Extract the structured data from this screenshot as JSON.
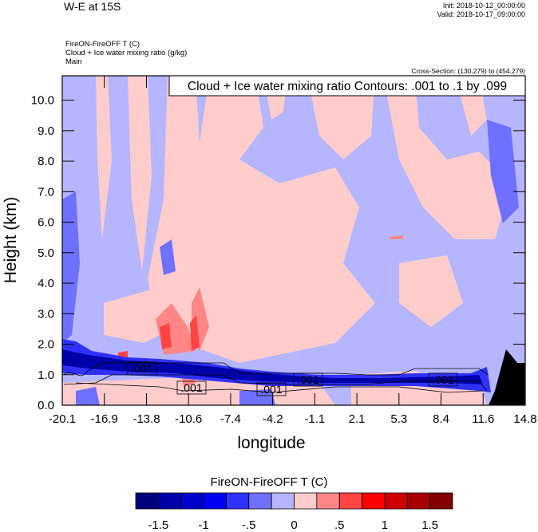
{
  "header": {
    "title": "W-E at 15S",
    "init": "Init: 2018-10-12_00:00:00",
    "valid": "Valid: 2018-10-17_09:00:00",
    "subtitle_lines": [
      "FireON-FireOFF T   (C)",
      "Cloud + Ice water mixing ratio   (g/kg)",
      "Main"
    ],
    "cross_section": "Cross-Section: (130,279) to (454,279)"
  },
  "chart_data": {
    "type": "heatmap",
    "contour_info": "Cloud + Ice water mixing ratio Contours: .001 to .1 by .099",
    "xlabel": "longitude",
    "ylabel": "Height (km)",
    "x_ticks": [
      "-20.1",
      "-16.9",
      "-13.8",
      "-10.6",
      "-7.4",
      "-4.2",
      "-1.1",
      "2.1",
      "5.3",
      "8.4",
      "11.6",
      "14.8"
    ],
    "xlim": [
      -20.1,
      14.8
    ],
    "y_ticks": [
      "0.0",
      "1.0",
      "2.0",
      "3.0",
      "4.0",
      "5.0",
      "6.0",
      "7.0",
      "8.0",
      "9.0",
      "10.0"
    ],
    "ylim": [
      0,
      10.8
    ],
    "contour_labels": [
      ".001",
      ".001",
      ".001",
      ".001",
      ".001"
    ],
    "colorbar": {
      "title": "FireON-FireOFF T  (C)",
      "labels": [
        "-1.5",
        "-1",
        "-.5",
        "0",
        ".5",
        "1",
        "1.5"
      ],
      "levels": [
        -1.5,
        -1.25,
        -1,
        -0.75,
        -0.5,
        -0.25,
        0,
        0.25,
        0.5,
        0.75,
        1,
        1.25,
        1.5
      ],
      "colors": [
        "#00007f",
        "#0000a8",
        "#0000cf",
        "#0000f5",
        "#3131ff",
        "#7070ff",
        "#b6b6ff",
        "#ffcccc",
        "#ff8686",
        "#ff4444",
        "#ff0000",
        "#d00000",
        "#a80000",
        "#800000"
      ]
    },
    "terrain_color": "#000000"
  }
}
